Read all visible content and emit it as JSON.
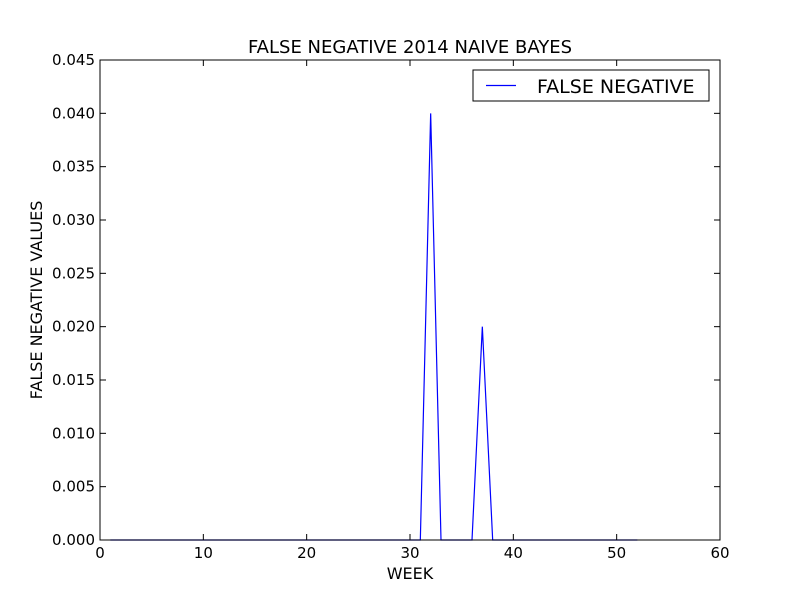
{
  "chart_data": {
    "type": "line",
    "title": "FALSE NEGATIVE 2014 NAIVE BAYES",
    "xlabel": "WEEK",
    "ylabel": "FALSE NEGATIVE VALUES",
    "xlim": [
      0,
      60
    ],
    "ylim": [
      0,
      0.045
    ],
    "xticks": [
      0,
      10,
      20,
      30,
      40,
      50,
      60
    ],
    "xtick_labels": [
      "0",
      "10",
      "20",
      "30",
      "40",
      "50",
      "60"
    ],
    "yticks": [
      0,
      0.005,
      0.01,
      0.015,
      0.02,
      0.025,
      0.03,
      0.035,
      0.04,
      0.045
    ],
    "ytick_labels": [
      "0.000",
      "0.005",
      "0.010",
      "0.015",
      "0.020",
      "0.025",
      "0.030",
      "0.035",
      "0.040",
      "0.045"
    ],
    "grid": false,
    "legend": {
      "placement": "top-right",
      "entries": [
        "FALSE NEGATIVE"
      ]
    },
    "series": [
      {
        "name": "FALSE NEGATIVE",
        "color": "#0000ff",
        "x": [
          1,
          2,
          3,
          4,
          5,
          6,
          7,
          8,
          9,
          10,
          11,
          12,
          13,
          14,
          15,
          16,
          17,
          18,
          19,
          20,
          21,
          22,
          23,
          24,
          25,
          26,
          27,
          28,
          29,
          30,
          31,
          32,
          33,
          34,
          35,
          36,
          37,
          38,
          39,
          40,
          41,
          42,
          43,
          44,
          45,
          46,
          47,
          48,
          49,
          50,
          51,
          52
        ],
        "y": [
          0,
          0,
          0,
          0,
          0,
          0,
          0,
          0,
          0,
          0,
          0,
          0,
          0,
          0,
          0,
          0,
          0,
          0,
          0,
          0,
          0,
          0,
          0,
          0,
          0,
          0,
          0,
          0,
          0,
          0,
          0,
          0.04,
          0,
          0,
          0,
          0,
          0.02,
          0,
          0,
          0,
          0,
          0,
          0,
          0,
          0,
          0,
          0,
          0,
          0,
          0,
          0,
          0
        ]
      }
    ]
  }
}
